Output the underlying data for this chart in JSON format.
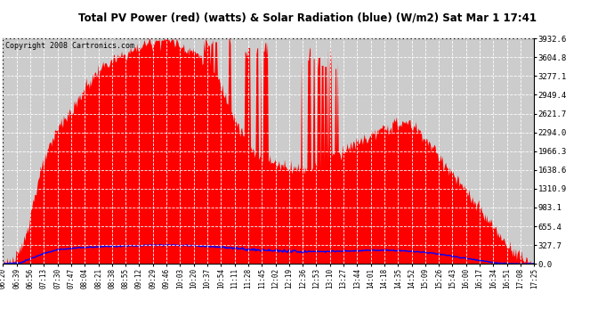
{
  "title": "Total PV Power (red) (watts) & Solar Radiation (blue) (W/m2) Sat Mar 1 17:41",
  "copyright": "Copyright 2008 Cartronics.com",
  "yticks": [
    0.0,
    327.7,
    655.4,
    983.1,
    1310.9,
    1638.6,
    1966.3,
    2294.0,
    2621.7,
    2949.4,
    3277.1,
    3604.8,
    3932.6
  ],
  "ymax": 3932.6,
  "ymin": 0.0,
  "bg_color": "#ffffff",
  "plot_bg_color": "#cccccc",
  "grid_color": "#ffffff",
  "title_bg": "#c0c0c0",
  "red_color": "#ff0000",
  "blue_color": "#0000ff",
  "x_labels": [
    "06:20",
    "06:39",
    "06:56",
    "07:13",
    "07:30",
    "07:47",
    "08:04",
    "08:21",
    "08:38",
    "08:55",
    "09:12",
    "09:29",
    "09:46",
    "10:03",
    "10:20",
    "10:37",
    "10:54",
    "11:11",
    "11:28",
    "11:45",
    "12:02",
    "12:19",
    "12:36",
    "12:53",
    "13:10",
    "13:27",
    "13:44",
    "14:01",
    "14:18",
    "14:35",
    "14:52",
    "15:09",
    "15:26",
    "15:43",
    "16:00",
    "16:17",
    "16:34",
    "16:51",
    "17:08",
    "17:25"
  ],
  "pv_shape": [
    0,
    5,
    10,
    20,
    35,
    60,
    100,
    160,
    250,
    370,
    500,
    650,
    800,
    980,
    1150,
    1300,
    1450,
    1580,
    1700,
    1820,
    1920,
    2000,
    2100,
    2200,
    2300,
    2380,
    2450,
    2500,
    2550,
    2580,
    2600,
    2650,
    2700,
    2780,
    2850,
    2920,
    2980,
    3040,
    3100,
    3150,
    3200,
    3250,
    3300,
    3350,
    3400,
    3420,
    3450,
    3480,
    3500,
    3520,
    3540,
    3560,
    3580,
    3600,
    3620,
    3640,
    3660,
    3680,
    3700,
    3720,
    3740,
    3760,
    3780,
    3800,
    3820,
    3840,
    3850,
    3860,
    3870,
    3880,
    3890,
    3900,
    3910,
    3920,
    3930,
    3920,
    3910,
    3890,
    3870,
    3850,
    3830,
    3810,
    3790,
    3770,
    3750,
    3730,
    3710,
    3690,
    3670,
    3650,
    3620,
    3590,
    3560,
    3530,
    3480,
    3420,
    3350,
    3280,
    3200,
    3120,
    3040,
    2950,
    2860,
    2770,
    2680,
    2590,
    2500,
    2410,
    2330,
    2250,
    2170,
    2100,
    2040,
    1990,
    1940,
    1900,
    1870,
    1850,
    1830,
    1810,
    1800,
    1790,
    1780,
    1770,
    1760,
    1750,
    1740,
    1730,
    1720,
    1710,
    1700,
    1690,
    1680,
    1670,
    1660,
    1650,
    1640,
    1640,
    1650,
    1660,
    1680,
    1700,
    1720,
    1740,
    1760,
    1780,
    1800,
    1820,
    1840,
    1860,
    1880,
    1900,
    1920,
    1940,
    1960,
    1980,
    2000,
    2020,
    2040,
    2060,
    2080,
    2100,
    2120,
    2140,
    2160,
    2180,
    2200,
    2220,
    2240,
    2260,
    2280,
    2300,
    2320,
    2340,
    2360,
    2380,
    2400,
    2410,
    2420,
    2430,
    2440,
    2450,
    2460,
    2460,
    2450,
    2440,
    2420,
    2400,
    2370,
    2340,
    2300,
    2250,
    2200,
    2150,
    2100,
    2050,
    2000,
    1950,
    1900,
    1850,
    1800,
    1750,
    1700,
    1650,
    1600,
    1550,
    1500,
    1450,
    1400,
    1350,
    1300,
    1250,
    1200,
    1150,
    1100,
    1050,
    1000,
    950,
    900,
    850,
    800,
    750,
    700,
    650,
    600,
    550,
    500,
    450,
    400,
    360,
    320,
    280,
    250,
    220,
    190,
    160,
    130,
    100,
    70,
    40,
    20,
    5,
    0
  ],
  "solar_shape": [
    0,
    2,
    4,
    6,
    8,
    12,
    16,
    22,
    30,
    40,
    55,
    70,
    85,
    100,
    115,
    130,
    145,
    158,
    170,
    182,
    192,
    200,
    210,
    218,
    225,
    230,
    235,
    238,
    242,
    245,
    248,
    252,
    255,
    258,
    260,
    262,
    264,
    266,
    268,
    270,
    272,
    274,
    275,
    276,
    277,
    278,
    279,
    280,
    281,
    282,
    283,
    284,
    285,
    286,
    287,
    288,
    289,
    290,
    291,
    292,
    293,
    294,
    295,
    296,
    297,
    298,
    299,
    300,
    300,
    300,
    300,
    300,
    300,
    300,
    300,
    299,
    298,
    297,
    296,
    295,
    294,
    293,
    292,
    290,
    289,
    287,
    285,
    283,
    281,
    279,
    277,
    275,
    272,
    269,
    266,
    263,
    260,
    257,
    254,
    251,
    248,
    245,
    242,
    239,
    236,
    233,
    230,
    227,
    224,
    221,
    219,
    217,
    215,
    213,
    211,
    209,
    207,
    206,
    205,
    204,
    203,
    202,
    201,
    200,
    200,
    199,
    198,
    197,
    197,
    197,
    197,
    197,
    197,
    197,
    197,
    197,
    197,
    197,
    197,
    197,
    197,
    198,
    198,
    199,
    200,
    201,
    202,
    203,
    204,
    205,
    206,
    207,
    208,
    209,
    210,
    211,
    212,
    213,
    214,
    215,
    216,
    216,
    216,
    216,
    216,
    216,
    216,
    216,
    215,
    214,
    213,
    212,
    210,
    208,
    206,
    204,
    202,
    200,
    197,
    194,
    191,
    188,
    185,
    182,
    178,
    174,
    170,
    165,
    160,
    155,
    150,
    144,
    138,
    132,
    126,
    120,
    114,
    108,
    102,
    96,
    90,
    84,
    78,
    72,
    66,
    60,
    55,
    50,
    45,
    40,
    35,
    30,
    25,
    20,
    15,
    12,
    9,
    6,
    4,
    3,
    2,
    1,
    1,
    1,
    0,
    0,
    0,
    0,
    0,
    0,
    0
  ]
}
